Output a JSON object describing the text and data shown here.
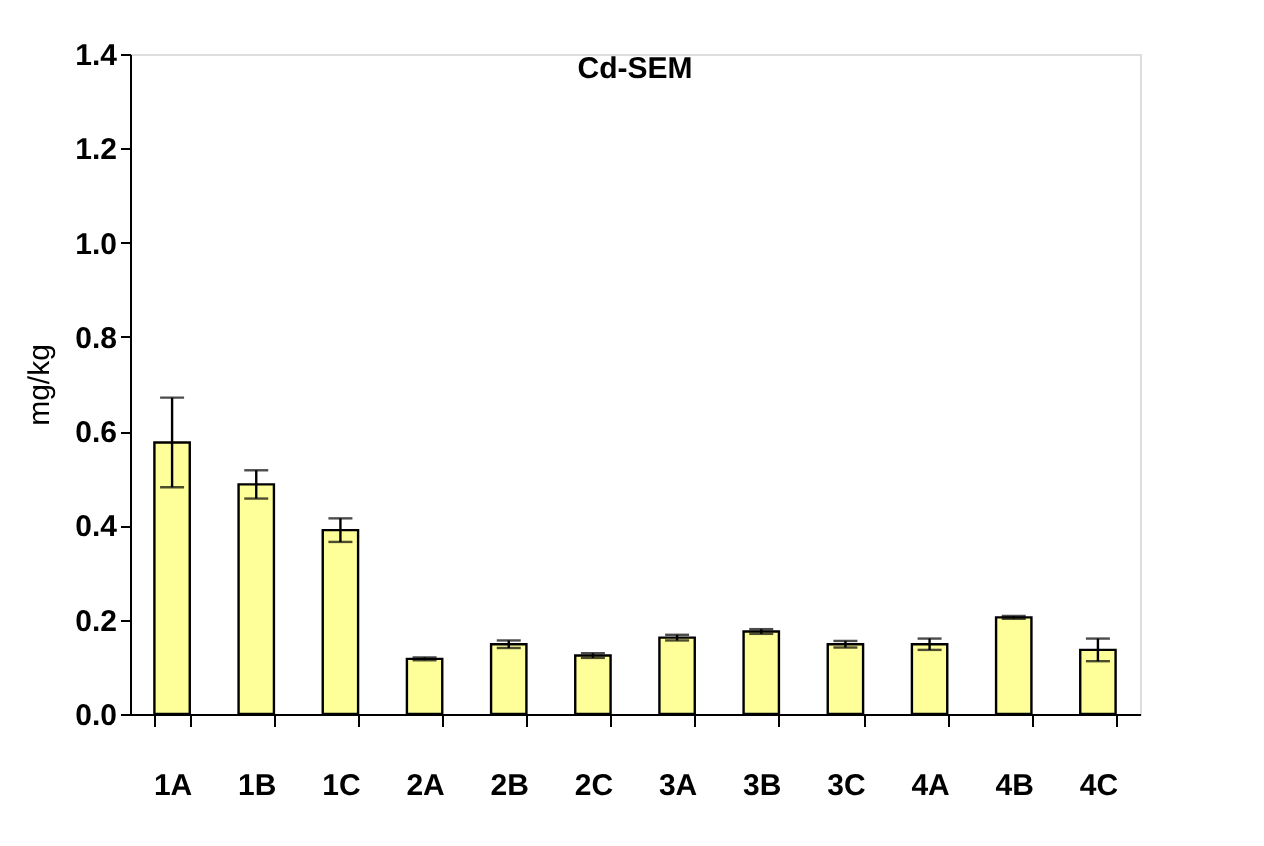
{
  "chart_data": {
    "type": "bar",
    "title": "Cd-SEM",
    "ylabel": "mg/kg",
    "categories": [
      "1A",
      "1B",
      "1C",
      "2A",
      "2B",
      "2C",
      "3A",
      "3B",
      "3C",
      "4A",
      "4B",
      "4C"
    ],
    "values": [
      0.576,
      0.487,
      0.39,
      0.117,
      0.148,
      0.124,
      0.162,
      0.175,
      0.148,
      0.148,
      0.205,
      0.136
    ],
    "errors": [
      0.095,
      0.03,
      0.025,
      0.003,
      0.008,
      0.005,
      0.006,
      0.005,
      0.007,
      0.012,
      0.003,
      0.024
    ],
    "color": "#ffff99",
    "ylim": [
      0,
      1.4
    ],
    "yticks": [
      {
        "value": 0,
        "label": "0.0"
      },
      {
        "value": 0.2,
        "label": "0.2"
      },
      {
        "value": 0.4,
        "label": "0.4"
      },
      {
        "value": 0.6,
        "label": "0.6"
      },
      {
        "value": 0.8,
        "label": "0.8"
      },
      {
        "value": 1.0,
        "label": "1.0"
      },
      {
        "value": 1.2,
        "label": "1.2"
      },
      {
        "value": 1.4,
        "label": "1.4"
      }
    ],
    "grid": false
  }
}
